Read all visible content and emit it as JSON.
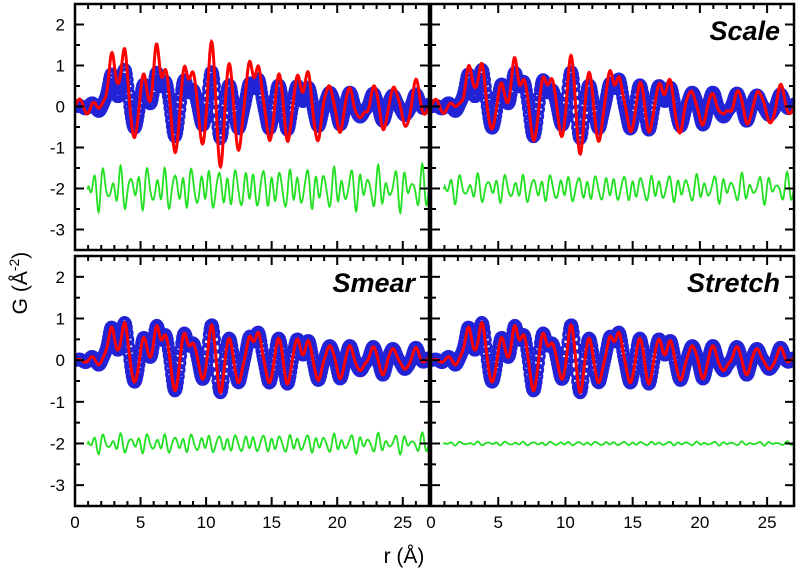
{
  "chart_data": {
    "type": "line",
    "ylabel": "G (Å",
    "ylabel_superscript": "-2",
    "ylabel_close": ")",
    "xlabel": "r (Å)",
    "xlim": [
      0,
      27
    ],
    "ylim": [
      -3.5,
      2.5
    ],
    "x_ticks": [
      0,
      5,
      10,
      15,
      20,
      25
    ],
    "x_tick_labels": [
      "0",
      "5",
      "10",
      "15",
      "20",
      "25"
    ],
    "y_ticks": [
      2,
      1,
      0,
      -1,
      -2,
      -3
    ],
    "y_tick_labels": [
      "2",
      "1",
      "0",
      "-1",
      "-2",
      "-3"
    ],
    "series_legend": {
      "observed": "#2323d6",
      "calculated": "#ff0000",
      "difference": "#22e022"
    },
    "panels": [
      {
        "id": "top-left",
        "title": "",
        "calc_amp_scale": 1.7,
        "diff_amp": 0.45,
        "diff_offset": -2.0
      },
      {
        "id": "top-right",
        "title": "Scale",
        "calc_amp_scale": 1.3,
        "diff_amp": 0.3,
        "diff_offset": -2.0
      },
      {
        "id": "bottom-left",
        "title": "Smear",
        "calc_amp_scale": 1.0,
        "diff_amp": 0.2,
        "diff_offset": -2.0
      },
      {
        "id": "bottom-right",
        "title": "Stretch",
        "calc_amp_scale": 1.0,
        "diff_amp": 0.04,
        "diff_offset": -2.0
      }
    ],
    "peaks": [
      {
        "r": 2.8,
        "g": 0.9
      },
      {
        "r": 3.8,
        "g": 1.0
      },
      {
        "r": 4.5,
        "g": -0.6
      },
      {
        "r": 5.2,
        "g": 0.5
      },
      {
        "r": 6.2,
        "g": 0.8
      },
      {
        "r": 6.9,
        "g": 0.7
      },
      {
        "r": 7.6,
        "g": -0.8
      },
      {
        "r": 8.3,
        "g": 0.6
      },
      {
        "r": 9.0,
        "g": 0.5
      },
      {
        "r": 9.7,
        "g": -0.5
      },
      {
        "r": 10.4,
        "g": 0.8
      },
      {
        "r": 11.1,
        "g": -0.7
      },
      {
        "r": 11.8,
        "g": 0.5
      },
      {
        "r": 12.5,
        "g": -0.6
      },
      {
        "r": 13.3,
        "g": 0.6
      },
      {
        "r": 14.0,
        "g": 0.7
      },
      {
        "r": 14.8,
        "g": -0.6
      },
      {
        "r": 15.5,
        "g": 0.5
      },
      {
        "r": 16.2,
        "g": -0.5
      },
      {
        "r": 17.0,
        "g": 0.5
      },
      {
        "r": 17.8,
        "g": 0.4
      },
      {
        "r": 18.6,
        "g": -0.5
      },
      {
        "r": 19.4,
        "g": 0.4
      },
      {
        "r": 20.2,
        "g": -0.4
      },
      {
        "r": 21.0,
        "g": 0.3
      },
      {
        "r": 21.8,
        "g": -0.3
      },
      {
        "r": 22.7,
        "g": 0.3
      },
      {
        "r": 23.5,
        "g": -0.3
      },
      {
        "r": 24.3,
        "g": 0.3
      },
      {
        "r": 25.1,
        "g": -0.25
      },
      {
        "r": 26.0,
        "g": 0.25
      }
    ]
  }
}
